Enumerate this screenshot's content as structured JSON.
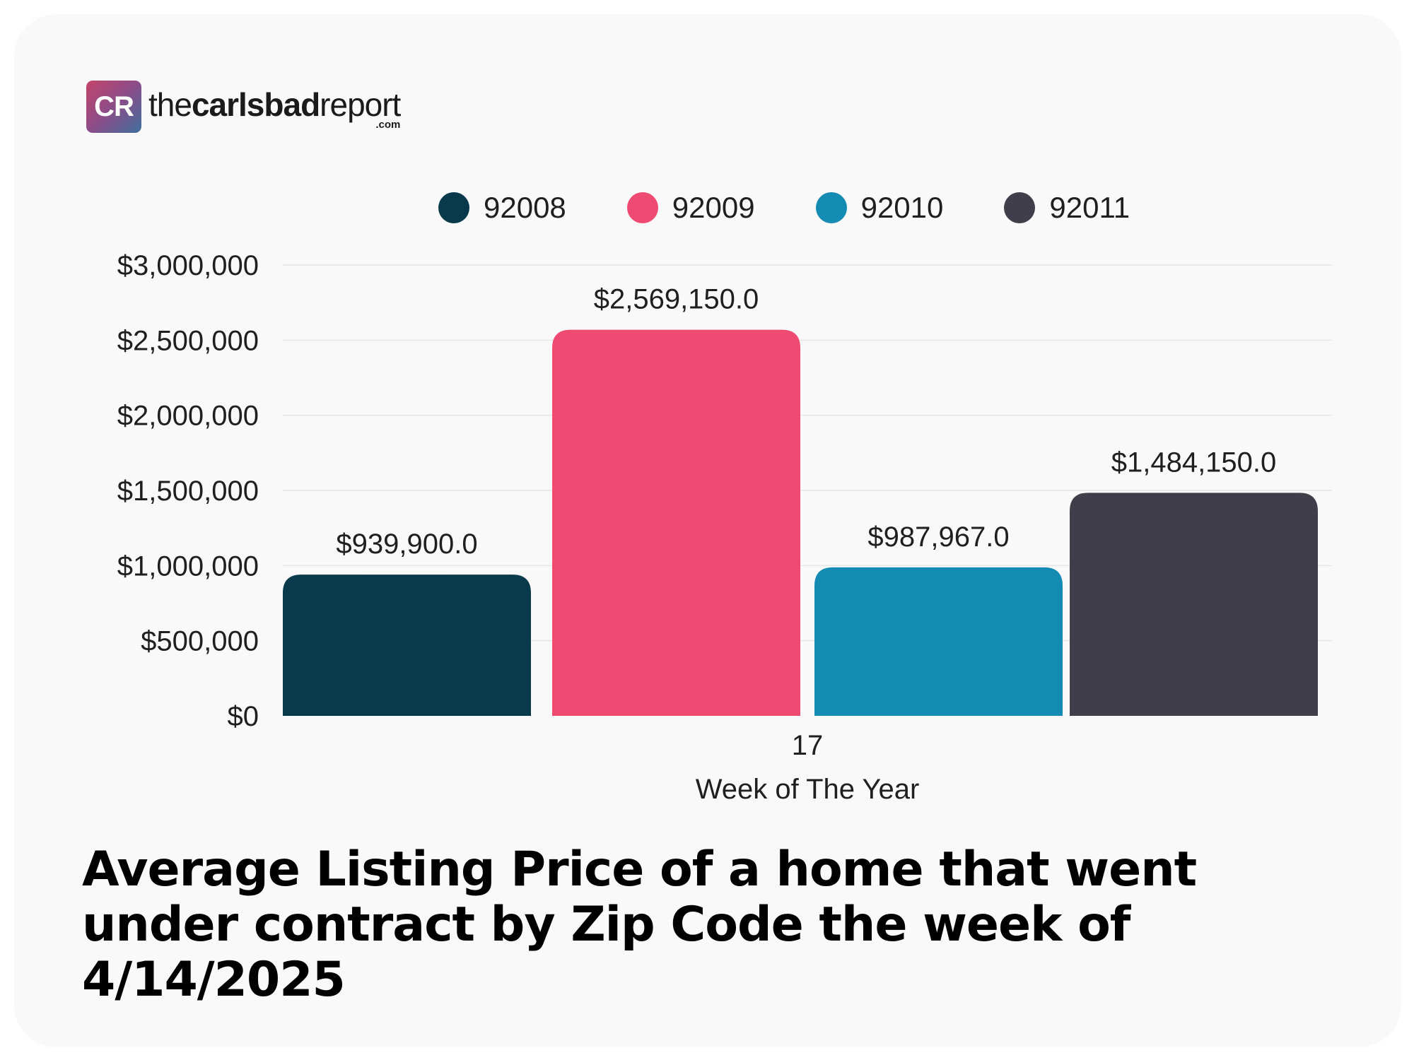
{
  "brand": {
    "badge": "CR",
    "word_regular_1": "the",
    "word_bold": "carlsbad",
    "word_regular_2": "report",
    "suffix": ".com"
  },
  "chart_data": {
    "type": "bar",
    "categories": [
      "17"
    ],
    "series": [
      {
        "name": "92008",
        "values": [
          939900.0
        ],
        "color": "#083a4b",
        "label": "$939,900.0"
      },
      {
        "name": "92009",
        "values": [
          2569150.0
        ],
        "color": "#ef4a72",
        "label": "$2,569,150.0"
      },
      {
        "name": "92010",
        "values": [
          987967.0
        ],
        "color": "#148bb3",
        "label": "$987,967.0"
      },
      {
        "name": "92011",
        "values": [
          1484150.0
        ],
        "color": "#3f3e4a",
        "label": "$1,484,150.0"
      }
    ],
    "xlabel": "Week of The Year",
    "ylabel": "",
    "ylim": [
      0,
      3000000
    ],
    "yticks": [
      0,
      500000,
      1000000,
      1500000,
      2000000,
      2500000,
      3000000
    ],
    "ytick_labels": [
      "$0",
      "$500,000",
      "$1,000,000",
      "$1,500,000",
      "$2,000,000",
      "$2,500,000",
      "$3,000,000"
    ],
    "grid": true,
    "legend_position": "top"
  },
  "title": "Average Listing Price of a home that went under contract by Zip Code the week of 4/14/2025"
}
